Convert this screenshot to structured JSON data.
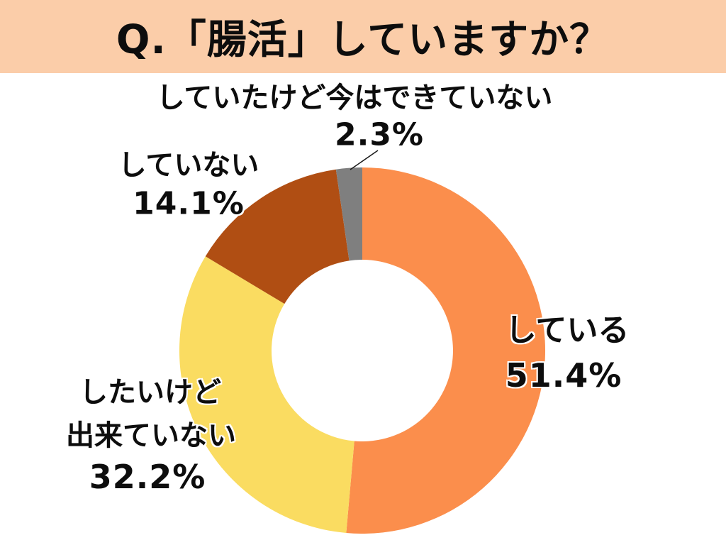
{
  "title": "Q.「腸活」していますか？",
  "chart_data": {
    "type": "pie",
    "subtype": "donut",
    "title": "Q.「腸活」していますか？",
    "unit": "%",
    "start_angle": "12 o'clock",
    "direction": "clockwise",
    "hole_ratio": 0.5,
    "legend_position": "outside labels with leader line on smallest slice",
    "slices": [
      {
        "label": "している",
        "value": 51.4,
        "display": "51.4%",
        "color": "#FB8E4C"
      },
      {
        "label": "したいけど出来ていない",
        "label_lines": [
          "したいけど",
          "出来ていない"
        ],
        "value": 32.2,
        "display": "32.2%",
        "color": "#FADC61"
      },
      {
        "label": "していない",
        "value": 14.1,
        "display": "14.1%",
        "color": "#B04E13"
      },
      {
        "label": "していたけど今はできていない",
        "value": 2.3,
        "display": "2.3%",
        "color": "#7F7F7F"
      }
    ]
  },
  "colors": {
    "banner_bg": "#FBCDA9",
    "page_bg": "#FFFFFF",
    "text": "#0D0D0D",
    "leader_line": "#1A1A1A"
  }
}
